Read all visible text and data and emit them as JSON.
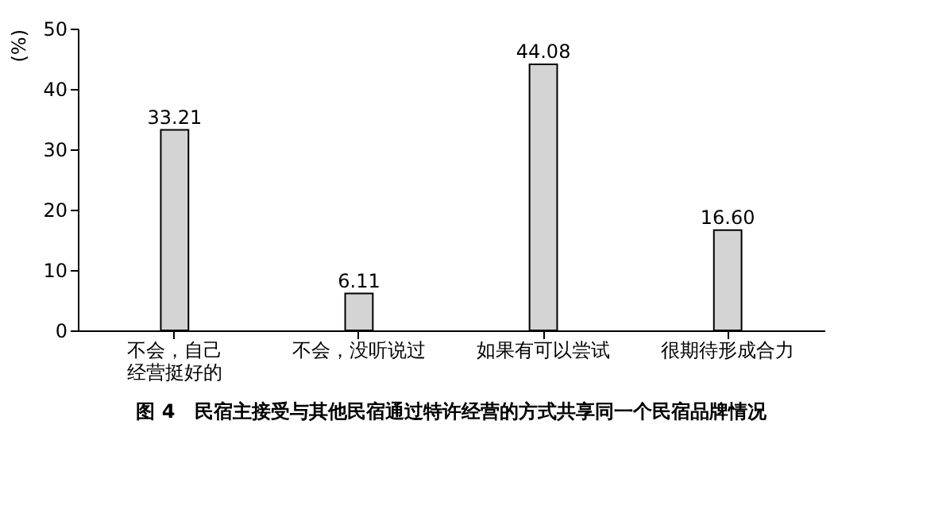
{
  "chart_data": {
    "type": "bar",
    "title": "图 4　民宿主接受与其他民宿通过特许经营的方式共享同一个民宿品牌情况",
    "ylabel": "(%)",
    "categories": [
      "不会，自己经营挺好的",
      "不会，没听说过",
      "如果有可以尝试",
      "很期待形成合力"
    ],
    "values": [
      33.21,
      6.11,
      44.08,
      16.6
    ],
    "value_labels": [
      "33.21",
      "6.11",
      "44.08",
      "16.60"
    ],
    "color": "#d4d4d4",
    "ylim": [
      0,
      50
    ],
    "yticks": [
      0,
      10,
      20,
      30,
      40,
      50
    ],
    "grid": false
  }
}
